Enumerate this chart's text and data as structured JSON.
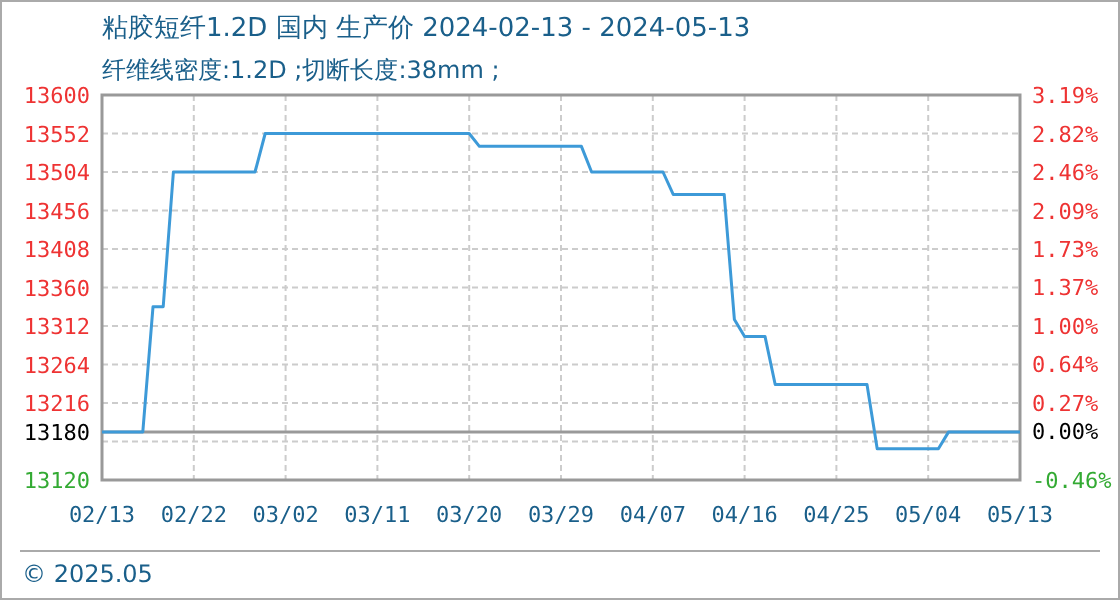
{
  "chart_data": {
    "type": "line",
    "title": "粘胶短纤1.2D 国内 生产价 2024-02-13 - 2024-05-13",
    "subtitle": "纤维线密度:1.2D ;切断长度:38mm ;",
    "x": [
      "2024-02-13",
      "2024-02-17",
      "2024-02-18",
      "2024-02-19",
      "2024-02-20",
      "2024-02-28",
      "2024-02-29",
      "2024-03-20",
      "2024-03-21",
      "2024-03-31",
      "2024-04-01",
      "2024-04-08",
      "2024-04-09",
      "2024-04-14",
      "2024-04-15",
      "2024-04-16",
      "2024-04-18",
      "2024-04-19",
      "2024-04-28",
      "2024-04-29",
      "2024-05-05",
      "2024-05-06",
      "2024-05-13"
    ],
    "series": [
      {
        "color": "#3d9ad8",
        "values": [
          13180,
          13180,
          13336,
          13336,
          13504,
          13504,
          13552,
          13552,
          13536,
          13536,
          13504,
          13504,
          13476,
          13476,
          13320,
          13299,
          13299,
          13239,
          13239,
          13159,
          13159,
          13180,
          13180
        ]
      }
    ],
    "xlim": [
      "2024-02-13",
      "2024-05-13"
    ],
    "xticks": [
      {
        "value": "2024-02-13",
        "label": "02/13"
      },
      {
        "value": "2024-02-22",
        "label": "02/22"
      },
      {
        "value": "2024-03-02",
        "label": "03/02"
      },
      {
        "value": "2024-03-11",
        "label": "03/11"
      },
      {
        "value": "2024-03-20",
        "label": "03/20"
      },
      {
        "value": "2024-03-29",
        "label": "03/29"
      },
      {
        "value": "2024-04-07",
        "label": "04/07"
      },
      {
        "value": "2024-04-16",
        "label": "04/16"
      },
      {
        "value": "2024-04-25",
        "label": "04/25"
      },
      {
        "value": "2024-05-04",
        "label": "05/04"
      },
      {
        "value": "2024-05-13",
        "label": "05/13"
      }
    ],
    "ylim": [
      13120,
      13600
    ],
    "yticks": [
      13120,
      {
        "value": 13168,
        "label": null
      },
      13180,
      13216,
      13264,
      13312,
      13360,
      13408,
      13456,
      13504,
      13552,
      13600
    ],
    "y2lim": [
      -0.46,
      3.19
    ],
    "y2ticks": [
      {
        "value": -0.46,
        "label": "-0.46%"
      },
      {
        "value": 0.0,
        "label": "0.00%"
      },
      {
        "value": 0.27,
        "label": "0.27%"
      },
      {
        "value": 0.64,
        "label": "0.64%"
      },
      {
        "value": 1.0,
        "label": "1.00%"
      },
      {
        "value": 1.37,
        "label": "1.37%"
      },
      {
        "value": 1.73,
        "label": "1.73%"
      },
      {
        "value": 2.09,
        "label": "2.09%"
      },
      {
        "value": 2.46,
        "label": "2.46%"
      },
      {
        "value": 2.82,
        "label": "2.82%"
      },
      {
        "value": 3.19,
        "label": "3.19%"
      }
    ],
    "ref_lines": [
      {
        "axis": "y",
        "value": 13180,
        "color": "#999999",
        "line_style": "solid"
      }
    ],
    "grid": true,
    "line_style": "solid",
    "marker": "none",
    "annotations": [
      "© 2025.05"
    ]
  }
}
